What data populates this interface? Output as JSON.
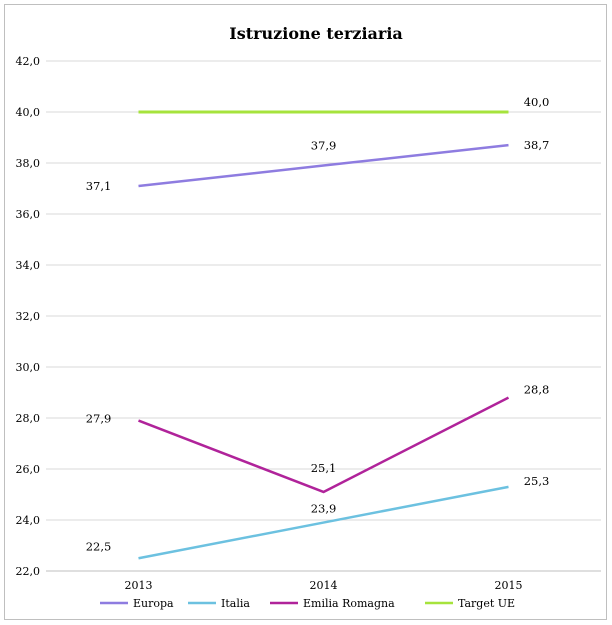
{
  "chart_data": {
    "type": "line",
    "title": "Istruzione terziaria",
    "categories": [
      "2013",
      "2014",
      "2015"
    ],
    "ylim": [
      22.0,
      42.0
    ],
    "ytick_step": 2.0,
    "yticks": [
      "22,0",
      "24,0",
      "26,0",
      "28,0",
      "30,0",
      "32,0",
      "34,0",
      "36,0",
      "38,0",
      "40,0",
      "42,0"
    ],
    "grid": true,
    "legend_position": "bottom",
    "series": [
      {
        "name": "Europa",
        "color": "#8e7ce0",
        "values": [
          37.1,
          37.9,
          38.7
        ],
        "labels": [
          "37,1",
          "37,9",
          "38,7"
        ]
      },
      {
        "name": "Italia",
        "color": "#6cc1e0",
        "values": [
          22.5,
          23.9,
          25.3
        ],
        "labels": [
          "22,5",
          "23,9",
          "25,3"
        ]
      },
      {
        "name": "Emilia Romagna",
        "color": "#b0239a",
        "values": [
          27.9,
          25.1,
          28.8
        ],
        "labels": [
          "27,9",
          "25,1",
          "28,8"
        ]
      },
      {
        "name": "Target UE",
        "color": "#a6e33c",
        "values": [
          40.0,
          40.0,
          40.0
        ],
        "labels": [
          "",
          "",
          "40,0"
        ]
      }
    ]
  }
}
